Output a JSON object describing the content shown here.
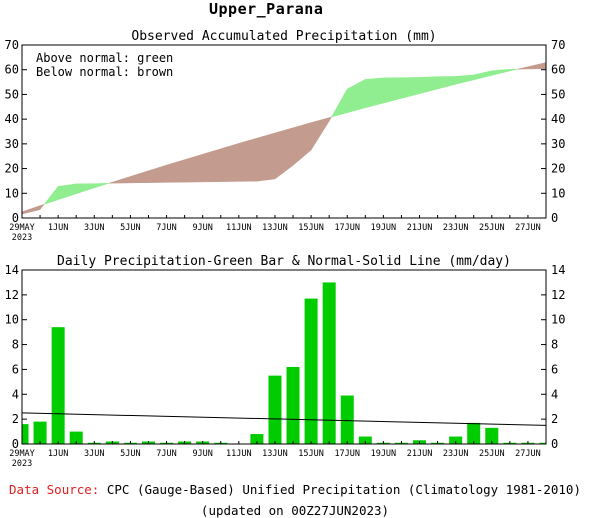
{
  "page": {
    "title": "Upper_Parana",
    "footer_source_label": "Data Source:",
    "footer_source_text": "CPC (Gauge-Based) Unified Precipitation (Climatology 1981-2010)",
    "footer_updated": "(updated on 00Z27JUN2023)",
    "colors": {
      "above": "#90ee90",
      "below": "#c39b8f",
      "bar": "#00cc00",
      "source_label": "#e02020"
    }
  },
  "chart_data": [
    {
      "type": "area",
      "title": "Observed Accumulated Precipitation (mm)",
      "legend": [
        "Above normal: green",
        "Below normal: brown"
      ],
      "legend_position": "top-left",
      "xlabels": [
        "29MAY\n2023",
        "1JUN",
        "3JUN",
        "5JUN",
        "7JUN",
        "9JUN",
        "11JUN",
        "13JUN",
        "15JUN",
        "17JUN",
        "19JUN",
        "21JUN",
        "23JUN",
        "25JUN",
        "27JUN"
      ],
      "ylim": [
        0,
        70
      ],
      "yticks": [
        0,
        10,
        20,
        30,
        40,
        50,
        60,
        70
      ],
      "days": 30,
      "series": [
        {
          "name": "Observed",
          "values": [
            1.6,
            3.4,
            12.8,
            13.8,
            13.9,
            14.1,
            14.2,
            14.3,
            14.4,
            14.5,
            14.6,
            14.7,
            14.8,
            14.9,
            15.8,
            21.3,
            27.5,
            39.2,
            52.2,
            56.1,
            56.7,
            56.8,
            56.9,
            57.2,
            57.3,
            57.9,
            59.6,
            60.2,
            60.3,
            60.4
          ]
        },
        {
          "name": "Normal",
          "values": [
            2.5,
            5.0,
            7.4,
            9.8,
            12.2,
            14.5,
            16.8,
            19.1,
            21.4,
            23.6,
            25.8,
            28.0,
            30.2,
            32.3,
            34.4,
            36.5,
            38.6,
            40.6,
            42.6,
            44.6,
            46.5,
            48.4,
            50.3,
            52.2,
            54.1,
            55.9,
            57.7,
            59.5,
            61.2,
            62.9
          ]
        }
      ]
    },
    {
      "type": "bar",
      "title": "Daily Precipitation-Green Bar & Normal-Solid Line (mm/day)",
      "xlabels": [
        "29MAY\n2023",
        "1JUN",
        "3JUN",
        "5JUN",
        "7JUN",
        "9JUN",
        "11JUN",
        "13JUN",
        "15JUN",
        "17JUN",
        "19JUN",
        "21JUN",
        "23JUN",
        "25JUN",
        "27JUN"
      ],
      "ylim": [
        0,
        14
      ],
      "yticks": [
        0,
        2,
        4,
        6,
        8,
        10,
        12,
        14
      ],
      "days": 30,
      "values": [
        1.6,
        1.8,
        9.4,
        1.0,
        0.1,
        0.2,
        0.1,
        0.2,
        0.1,
        0.2,
        0.2,
        0.1,
        0.0,
        0.8,
        5.5,
        6.2,
        11.7,
        13.0,
        3.9,
        0.6,
        0.1,
        0.1,
        0.3,
        0.1,
        0.6,
        1.7,
        1.3,
        0.1,
        0.1,
        0.1
      ],
      "normal": {
        "start": 2.5,
        "end": 1.5
      }
    }
  ]
}
